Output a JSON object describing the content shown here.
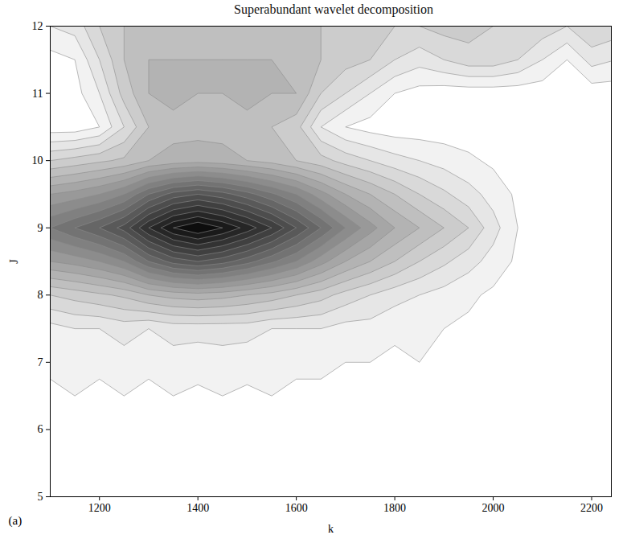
{
  "chart_data": {
    "type": "contour",
    "title": "Superabundant wavelet decomposition",
    "x_label": "k",
    "y_label": "J",
    "panel_label": "(a)",
    "xlim": [
      1100,
      2240
    ],
    "ylim": [
      5,
      12
    ],
    "xticks": [
      1200,
      1400,
      1600,
      1800,
      2000,
      2200
    ],
    "yticks": [
      5,
      6,
      7,
      8,
      9,
      10,
      11,
      12
    ],
    "color": "#000000",
    "zlim": [
      0,
      1
    ],
    "grid_x": [
      1100,
      1150,
      1200,
      1250,
      1300,
      1350,
      1400,
      1450,
      1500,
      1550,
      1600,
      1650,
      1700,
      1750,
      1800,
      1850,
      1900,
      1950,
      2000,
      2050,
      2100,
      2150,
      2200,
      2250
    ],
    "grid_y": [
      5,
      5.5,
      6,
      6.5,
      7,
      7.5,
      8,
      8.5,
      9,
      9.5,
      10,
      10.5,
      11,
      11.5,
      12
    ],
    "cells": [
      [
        0.02,
        0.02,
        0.02,
        0.02,
        0.02,
        0.02,
        0.02,
        0.02,
        0.02,
        0.02,
        0.02,
        0.02,
        0.02,
        0.02,
        0.02,
        0.02,
        0.02,
        0.02,
        0.02,
        0.02,
        0.02,
        0.02,
        0.02,
        0.02
      ],
      [
        0.03,
        0.03,
        0.03,
        0.03,
        0.03,
        0.03,
        0.03,
        0.03,
        0.03,
        0.03,
        0.03,
        0.03,
        0.03,
        0.03,
        0.03,
        0.03,
        0.03,
        0.03,
        0.03,
        0.03,
        0.03,
        0.03,
        0.03,
        0.03
      ],
      [
        0.05,
        0.03,
        0.05,
        0.03,
        0.05,
        0.03,
        0.05,
        0.03,
        0.05,
        0.03,
        0.04,
        0.03,
        0.04,
        0.03,
        0.04,
        0.03,
        0.04,
        0.03,
        0.03,
        0.04,
        0.03,
        0.04,
        0.03,
        0.03
      ],
      [
        0.04,
        0.05,
        0.04,
        0.05,
        0.04,
        0.05,
        0.04,
        0.05,
        0.04,
        0.05,
        0.04,
        0.04,
        0.03,
        0.04,
        0.03,
        0.04,
        0.03,
        0.04,
        0.03,
        0.03,
        0.03,
        0.03,
        0.03,
        0.03
      ],
      [
        0.06,
        0.08,
        0.06,
        0.08,
        0.06,
        0.08,
        0.07,
        0.08,
        0.07,
        0.07,
        0.06,
        0.06,
        0.05,
        0.05,
        0.04,
        0.05,
        0.04,
        0.05,
        0.04,
        0.04,
        0.03,
        0.04,
        0.03,
        0.03
      ],
      [
        0.08,
        0.1,
        0.1,
        0.12,
        0.1,
        0.12,
        0.12,
        0.12,
        0.12,
        0.1,
        0.1,
        0.1,
        0.08,
        0.08,
        0.06,
        0.05,
        0.05,
        0.04,
        0.04,
        0.03,
        0.03,
        0.03,
        0.03,
        0.03
      ],
      [
        0.2,
        0.22,
        0.24,
        0.26,
        0.3,
        0.32,
        0.33,
        0.32,
        0.3,
        0.28,
        0.25,
        0.22,
        0.18,
        0.15,
        0.12,
        0.1,
        0.08,
        0.06,
        0.04,
        0.03,
        0.02,
        0.02,
        0.02,
        0.02
      ],
      [
        0.4,
        0.42,
        0.45,
        0.5,
        0.6,
        0.67,
        0.7,
        0.67,
        0.62,
        0.56,
        0.5,
        0.42,
        0.35,
        0.3,
        0.25,
        0.2,
        0.16,
        0.12,
        0.08,
        0.04,
        0.03,
        0.02,
        0.02,
        0.02
      ],
      [
        0.55,
        0.6,
        0.65,
        0.72,
        0.85,
        0.95,
        1.0,
        0.95,
        0.88,
        0.8,
        0.7,
        0.6,
        0.5,
        0.42,
        0.35,
        0.3,
        0.25,
        0.2,
        0.12,
        0.05,
        0.03,
        0.02,
        0.02,
        0.02
      ],
      [
        0.4,
        0.42,
        0.45,
        0.5,
        0.6,
        0.67,
        0.7,
        0.67,
        0.62,
        0.56,
        0.5,
        0.42,
        0.35,
        0.3,
        0.25,
        0.2,
        0.16,
        0.12,
        0.08,
        0.04,
        0.03,
        0.02,
        0.02,
        0.02
      ],
      [
        0.2,
        0.22,
        0.24,
        0.26,
        0.3,
        0.32,
        0.33,
        0.32,
        0.3,
        0.28,
        0.25,
        0.22,
        0.18,
        0.15,
        0.12,
        0.1,
        0.08,
        0.06,
        0.04,
        0.03,
        0.02,
        0.02,
        0.02,
        0.02
      ],
      [
        0.02,
        0.02,
        0.05,
        0.15,
        0.25,
        0.28,
        0.28,
        0.28,
        0.28,
        0.25,
        0.22,
        0.1,
        0.05,
        0.03,
        0.02,
        0.02,
        0.02,
        0.02,
        0.02,
        0.02,
        0.02,
        0.02,
        0.02,
        0.02
      ],
      [
        0.02,
        0.03,
        0.1,
        0.22,
        0.3,
        0.32,
        0.3,
        0.3,
        0.32,
        0.3,
        0.3,
        0.2,
        0.15,
        0.1,
        0.05,
        0.03,
        0.02,
        0.02,
        0.02,
        0.02,
        0.02,
        0.02,
        0.02,
        0.02
      ],
      [
        0.03,
        0.05,
        0.15,
        0.25,
        0.3,
        0.3,
        0.3,
        0.3,
        0.3,
        0.3,
        0.28,
        0.25,
        0.22,
        0.2,
        0.15,
        0.12,
        0.15,
        0.18,
        0.18,
        0.15,
        0.1,
        0.05,
        0.12,
        0.1
      ],
      [
        0.1,
        0.12,
        0.2,
        0.25,
        0.28,
        0.28,
        0.28,
        0.28,
        0.28,
        0.28,
        0.26,
        0.25,
        0.22,
        0.22,
        0.2,
        0.2,
        0.22,
        0.22,
        0.2,
        0.2,
        0.18,
        0.15,
        0.2,
        0.18
      ]
    ]
  }
}
